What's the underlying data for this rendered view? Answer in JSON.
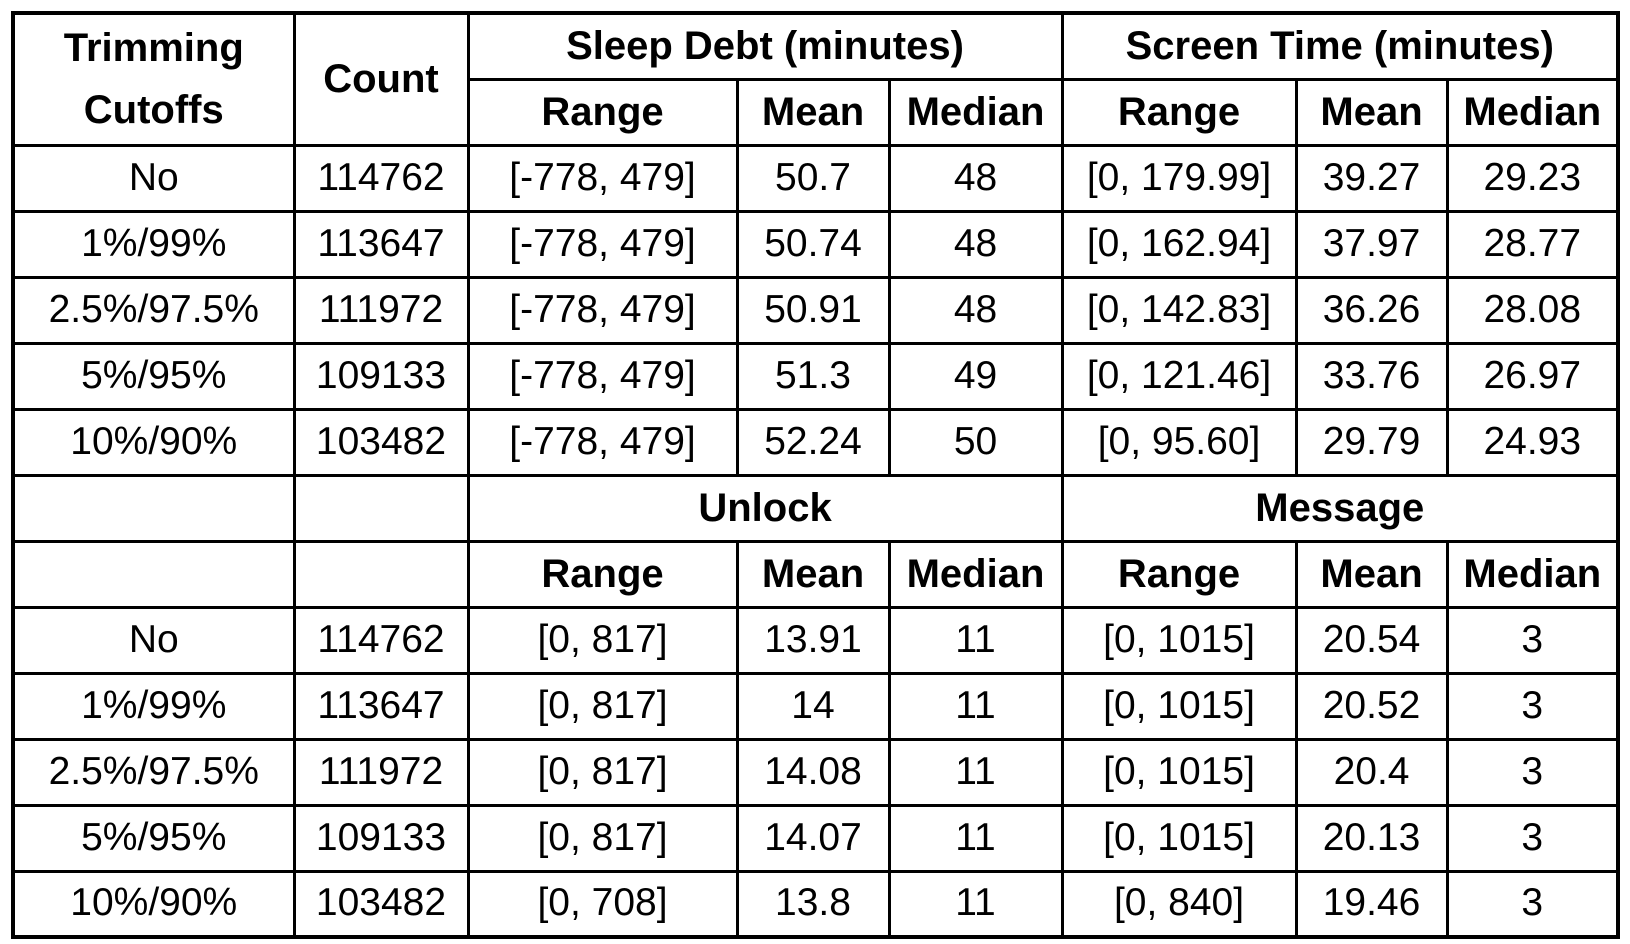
{
  "header": {
    "trimming_cutoffs": "Trimming Cutoffs",
    "count": "Count",
    "group1": "Sleep Debt (minutes)",
    "group2": "Screen Time (minutes)",
    "group3": "Unlock",
    "group4": "Message",
    "range": "Range",
    "mean": "Mean",
    "median": "Median"
  },
  "upper_rows": [
    {
      "cutoff": "No",
      "count": "114762",
      "sd_range": "[-778, 479]",
      "sd_mean": "50.7",
      "sd_median": "48",
      "st_range": "[0, 179.99]",
      "st_mean": "39.27",
      "st_median": "29.23"
    },
    {
      "cutoff": "1%/99%",
      "count": "113647",
      "sd_range": "[-778, 479]",
      "sd_mean": "50.74",
      "sd_median": "48",
      "st_range": "[0, 162.94]",
      "st_mean": "37.97",
      "st_median": "28.77"
    },
    {
      "cutoff": "2.5%/97.5%",
      "count": "111972",
      "sd_range": "[-778, 479]",
      "sd_mean": "50.91",
      "sd_median": "48",
      "st_range": "[0, 142.83]",
      "st_mean": "36.26",
      "st_median": "28.08"
    },
    {
      "cutoff": "5%/95%",
      "count": "109133",
      "sd_range": "[-778, 479]",
      "sd_mean": "51.3",
      "sd_median": "49",
      "st_range": "[0, 121.46]",
      "st_mean": "33.76",
      "st_median": "26.97"
    },
    {
      "cutoff": "10%/90%",
      "count": "103482",
      "sd_range": "[-778, 479]",
      "sd_mean": "52.24",
      "sd_median": "50",
      "st_range": "[0, 95.60]",
      "st_mean": "29.79",
      "st_median": "24.93"
    }
  ],
  "lower_rows": [
    {
      "cutoff": "No",
      "count": "114762",
      "u_range": "[0, 817]",
      "u_mean": "13.91",
      "u_median": "11",
      "m_range": "[0, 1015]",
      "m_mean": "20.54",
      "m_median": "3"
    },
    {
      "cutoff": "1%/99%",
      "count": "113647",
      "u_range": "[0, 817]",
      "u_mean": "14",
      "u_median": "11",
      "m_range": "[0, 1015]",
      "m_mean": "20.52",
      "m_median": "3"
    },
    {
      "cutoff": "2.5%/97.5%",
      "count": "111972",
      "u_range": "[0, 817]",
      "u_mean": "14.08",
      "u_median": "11",
      "m_range": "[0, 1015]",
      "m_mean": "20.4",
      "m_median": "3"
    },
    {
      "cutoff": "5%/95%",
      "count": "109133",
      "u_range": "[0, 817]",
      "u_mean": "14.07",
      "u_median": "11",
      "m_range": "[0, 1015]",
      "m_mean": "20.13",
      "m_median": "3"
    },
    {
      "cutoff": "10%/90%",
      "count": "103482",
      "u_range": "[0, 708]",
      "u_mean": "13.8",
      "u_median": "11",
      "m_range": "[0, 840]",
      "m_mean": "19.46",
      "m_median": "3"
    }
  ]
}
